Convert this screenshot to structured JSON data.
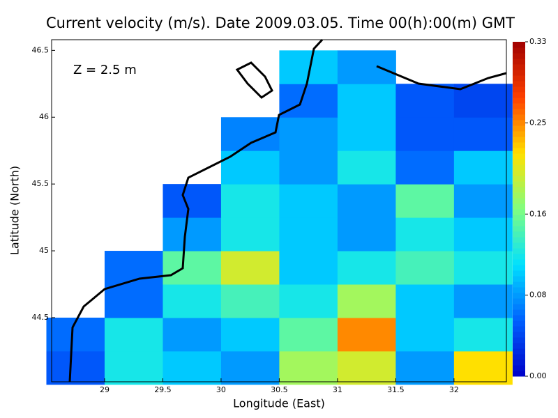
{
  "chart_data": {
    "type": "heatmap",
    "title": "Current velocity (m/s). Date 2009.03.05. Time 00(h):00(m) GMT",
    "annotation": "Z = 2.5 m",
    "x_label": "Longitude (East)",
    "y_label": "Latitude (North)",
    "x": [
      28.75,
      29.25,
      29.75,
      30.25,
      30.75,
      31.25,
      31.75,
      32.25
    ],
    "y": [
      44.125,
      44.375,
      44.625,
      44.875,
      45.125,
      45.375,
      45.625,
      45.875,
      46.125,
      46.375
    ],
    "values": [
      [
        0.05,
        0.12,
        0.1,
        0.08,
        0.18,
        0.2,
        0.08,
        0.22
      ],
      [
        0.06,
        0.12,
        0.08,
        0.1,
        0.15,
        0.25,
        0.1,
        0.12
      ],
      [
        null,
        0.06,
        0.12,
        0.14,
        0.12,
        0.18,
        0.1,
        0.08
      ],
      [
        null,
        0.06,
        0.15,
        0.2,
        0.1,
        0.12,
        0.14,
        0.12
      ],
      [
        null,
        null,
        0.08,
        0.12,
        0.1,
        0.08,
        0.12,
        0.1
      ],
      [
        null,
        null,
        0.05,
        0.12,
        0.1,
        0.08,
        0.15,
        0.08
      ],
      [
        null,
        null,
        null,
        0.1,
        0.08,
        0.12,
        0.06,
        0.1
      ],
      [
        null,
        null,
        null,
        0.07,
        0.08,
        0.1,
        0.05,
        0.05
      ],
      [
        null,
        null,
        null,
        null,
        0.06,
        0.1,
        0.05,
        0.04
      ],
      [
        null,
        null,
        null,
        null,
        0.1,
        0.08,
        null,
        null
      ]
    ],
    "xlim": [
      28.545,
      32.45
    ],
    "ylim": [
      44.02,
      46.58
    ],
    "xticks": [
      29,
      29.5,
      30,
      30.5,
      31,
      31.5,
      32
    ],
    "yticks": [
      44.5,
      45,
      45.5,
      46,
      46.5
    ],
    "colorbar": {
      "lim": [
        0,
        0.33
      ],
      "ticks": [
        {
          "value": 0,
          "label": "0.00"
        },
        0.08,
        0.16,
        0.25,
        0.33
      ]
    },
    "colormap": [
      "#0000c8",
      "#0060ff",
      "#00e0ff",
      "#80ff80",
      "#ffe000",
      "#ff4000",
      "#a00000"
    ]
  }
}
